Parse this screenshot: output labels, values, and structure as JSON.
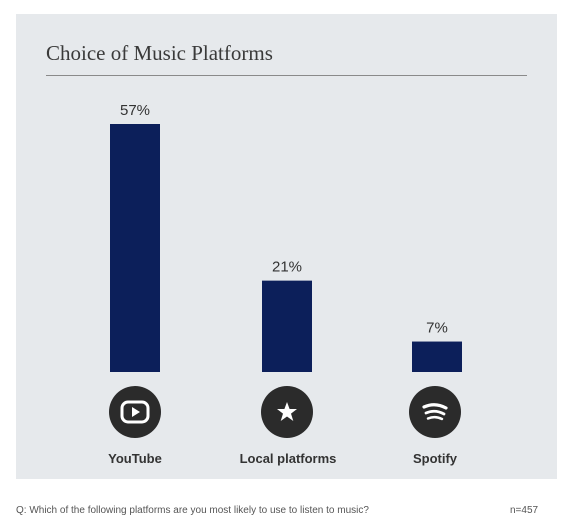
{
  "chart_data": {
    "type": "bar",
    "title": "Choice of Music Platforms",
    "categories": [
      "YouTube",
      "Local platforms",
      "Spotify"
    ],
    "values": [
      57,
      21,
      7
    ],
    "value_labels": [
      "57%",
      "21%",
      "7%"
    ],
    "icons": [
      "youtube-icon",
      "star-icon",
      "spotify-icon"
    ],
    "ylim": [
      0,
      57
    ],
    "bar_color": "#0c1f5a",
    "grid": false
  },
  "footer": {
    "question": "Q: Which of the following platforms are you most likely to use to listen to music?",
    "n": "n=457"
  }
}
